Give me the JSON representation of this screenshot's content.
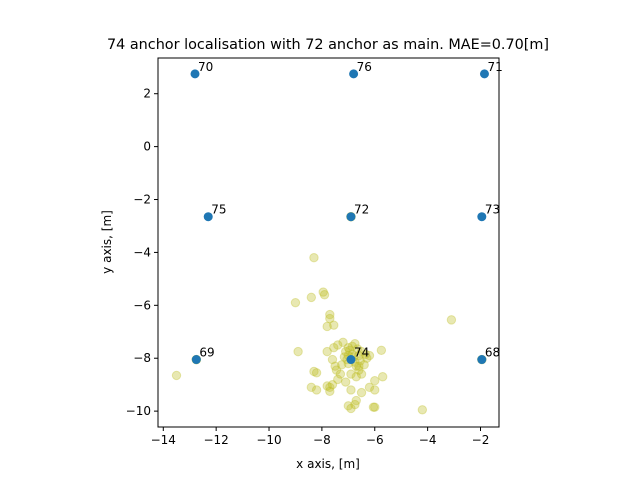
{
  "chart_data": {
    "type": "scatter",
    "title": "74 anchor localisation with 72 anchor as main. MAE=0.70[m]",
    "xlabel": "x axis, [m]",
    "ylabel": "y axis, [m]",
    "xlim": [
      -14.2,
      -1.3
    ],
    "ylim": [
      -10.6,
      3.35
    ],
    "xticks": [
      -14,
      -12,
      -10,
      -8,
      -6,
      -4,
      -2
    ],
    "yticks": [
      -10,
      -8,
      -6,
      -4,
      -2,
      0,
      2
    ],
    "grid": false,
    "legend": "none",
    "colors": {
      "anchor": "#1f77b4",
      "estimate": "#bcbd22",
      "estimate_alpha": 0.35
    },
    "anchors": [
      {
        "label": "70",
        "x": -12.8,
        "y": 2.75
      },
      {
        "label": "76",
        "x": -6.8,
        "y": 2.75
      },
      {
        "label": "71",
        "x": -1.85,
        "y": 2.75
      },
      {
        "label": "75",
        "x": -12.3,
        "y": -2.65
      },
      {
        "label": "72",
        "x": -6.9,
        "y": -2.65
      },
      {
        "label": "73",
        "x": -1.95,
        "y": -2.65
      },
      {
        "label": "69",
        "x": -12.75,
        "y": -8.05
      },
      {
        "label": "74",
        "x": -6.9,
        "y": -8.05
      },
      {
        "label": "68",
        "x": -1.95,
        "y": -8.05
      }
    ],
    "estimates": [
      {
        "x": -12.75,
        "y": -8.05
      },
      {
        "x": -12.75,
        "y": -8.05
      },
      {
        "x": -12.75,
        "y": -8.05
      },
      {
        "x": -6.9,
        "y": -2.65
      },
      {
        "x": -6.9,
        "y": -2.65
      },
      {
        "x": -6.9,
        "y": -2.65
      },
      {
        "x": -1.95,
        "y": -8.05
      },
      {
        "x": -1.95,
        "y": -8.05
      },
      {
        "x": -13.5,
        "y": -8.65
      },
      {
        "x": -8.9,
        "y": -7.75
      },
      {
        "x": -9.0,
        "y": -5.9
      },
      {
        "x": -8.4,
        "y": -5.7
      },
      {
        "x": -8.3,
        "y": -4.2
      },
      {
        "x": -7.95,
        "y": -5.5
      },
      {
        "x": -7.9,
        "y": -5.6
      },
      {
        "x": -7.7,
        "y": -6.35
      },
      {
        "x": -7.7,
        "y": -6.5
      },
      {
        "x": -7.8,
        "y": -6.8
      },
      {
        "x": -7.55,
        "y": -6.75
      },
      {
        "x": -3.1,
        "y": -6.55
      },
      {
        "x": -4.2,
        "y": -9.95
      },
      {
        "x": -5.75,
        "y": -7.7
      },
      {
        "x": -5.7,
        "y": -8.7
      },
      {
        "x": -6.0,
        "y": -8.85
      },
      {
        "x": -6.0,
        "y": -9.2
      },
      {
        "x": -6.0,
        "y": -9.85
      },
      {
        "x": -6.05,
        "y": -9.85
      },
      {
        "x": -6.2,
        "y": -9.1
      },
      {
        "x": -6.3,
        "y": -8.0
      },
      {
        "x": -6.2,
        "y": -7.9
      },
      {
        "x": -6.5,
        "y": -8.6
      },
      {
        "x": -6.6,
        "y": -8.3
      },
      {
        "x": -6.5,
        "y": -9.3
      },
      {
        "x": -6.7,
        "y": -9.6
      },
      {
        "x": -6.75,
        "y": -9.75
      },
      {
        "x": -6.9,
        "y": -9.9
      },
      {
        "x": -7.0,
        "y": -9.8
      },
      {
        "x": -6.9,
        "y": -9.2
      },
      {
        "x": -7.1,
        "y": -8.9
      },
      {
        "x": -7.3,
        "y": -8.6
      },
      {
        "x": -7.4,
        "y": -8.8
      },
      {
        "x": -7.6,
        "y": -9.0
      },
      {
        "x": -7.7,
        "y": -9.1
      },
      {
        "x": -7.7,
        "y": -9.25
      },
      {
        "x": -7.8,
        "y": -9.05
      },
      {
        "x": -8.2,
        "y": -9.2
      },
      {
        "x": -8.4,
        "y": -9.1
      },
      {
        "x": -8.2,
        "y": -8.55
      },
      {
        "x": -8.3,
        "y": -8.5
      },
      {
        "x": -7.8,
        "y": -7.75
      },
      {
        "x": -7.6,
        "y": -8.05
      },
      {
        "x": -7.5,
        "y": -8.3
      },
      {
        "x": -7.4,
        "y": -7.5
      },
      {
        "x": -7.2,
        "y": -7.4
      },
      {
        "x": -7.1,
        "y": -7.75
      },
      {
        "x": -7.0,
        "y": -7.9
      },
      {
        "x": -7.05,
        "y": -8.05
      },
      {
        "x": -6.95,
        "y": -7.7
      },
      {
        "x": -6.85,
        "y": -7.85
      },
      {
        "x": -6.8,
        "y": -7.95
      },
      {
        "x": -6.75,
        "y": -8.15
      },
      {
        "x": -6.7,
        "y": -8.3
      },
      {
        "x": -6.65,
        "y": -7.65
      },
      {
        "x": -6.6,
        "y": -8.45
      },
      {
        "x": -6.55,
        "y": -8.1
      },
      {
        "x": -6.5,
        "y": -7.75
      },
      {
        "x": -6.4,
        "y": -8.25
      },
      {
        "x": -6.35,
        "y": -7.85
      },
      {
        "x": -6.9,
        "y": -8.6
      },
      {
        "x": -7.0,
        "y": -8.2
      },
      {
        "x": -7.15,
        "y": -7.95
      },
      {
        "x": -7.25,
        "y": -8.25
      },
      {
        "x": -6.85,
        "y": -7.55
      },
      {
        "x": -6.75,
        "y": -7.45
      },
      {
        "x": -7.0,
        "y": -7.6
      },
      {
        "x": -6.6,
        "y": -7.9
      },
      {
        "x": -6.7,
        "y": -8.7
      },
      {
        "x": -7.45,
        "y": -8.45
      },
      {
        "x": -7.55,
        "y": -7.6
      }
    ]
  }
}
